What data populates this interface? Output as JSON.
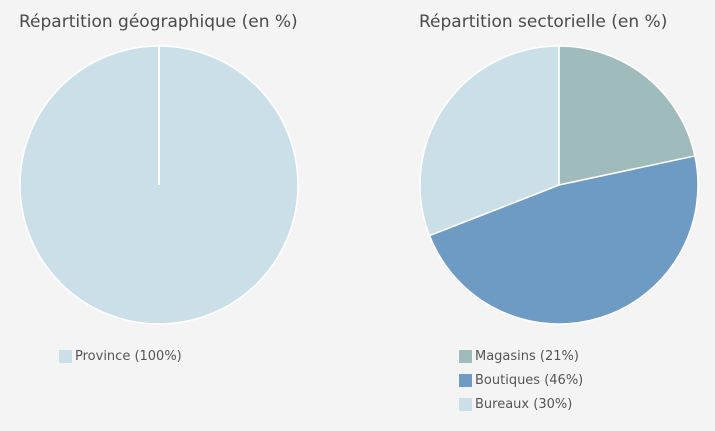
{
  "chart_data": [
    {
      "type": "pie",
      "title": "Répartition géographique (en %)",
      "categories": [
        "Province"
      ],
      "values": [
        100
      ],
      "colors": [
        "#cbdfe8"
      ],
      "legend_labels": [
        "Province (100%)"
      ],
      "legend_position": "bottom-left"
    },
    {
      "type": "pie",
      "title": "Répartition sectorielle (en %)",
      "categories": [
        "Magasins",
        "Boutiques",
        "Bureaux"
      ],
      "values": [
        21,
        46,
        30
      ],
      "colors": [
        "#9fbbbb",
        "#6e9bc3",
        "#cbdfe8"
      ],
      "legend_labels": [
        "Magasins (21%)",
        "Boutiques (46%)",
        "Bureaux (30%)"
      ],
      "legend_position": "bottom-left"
    }
  ]
}
